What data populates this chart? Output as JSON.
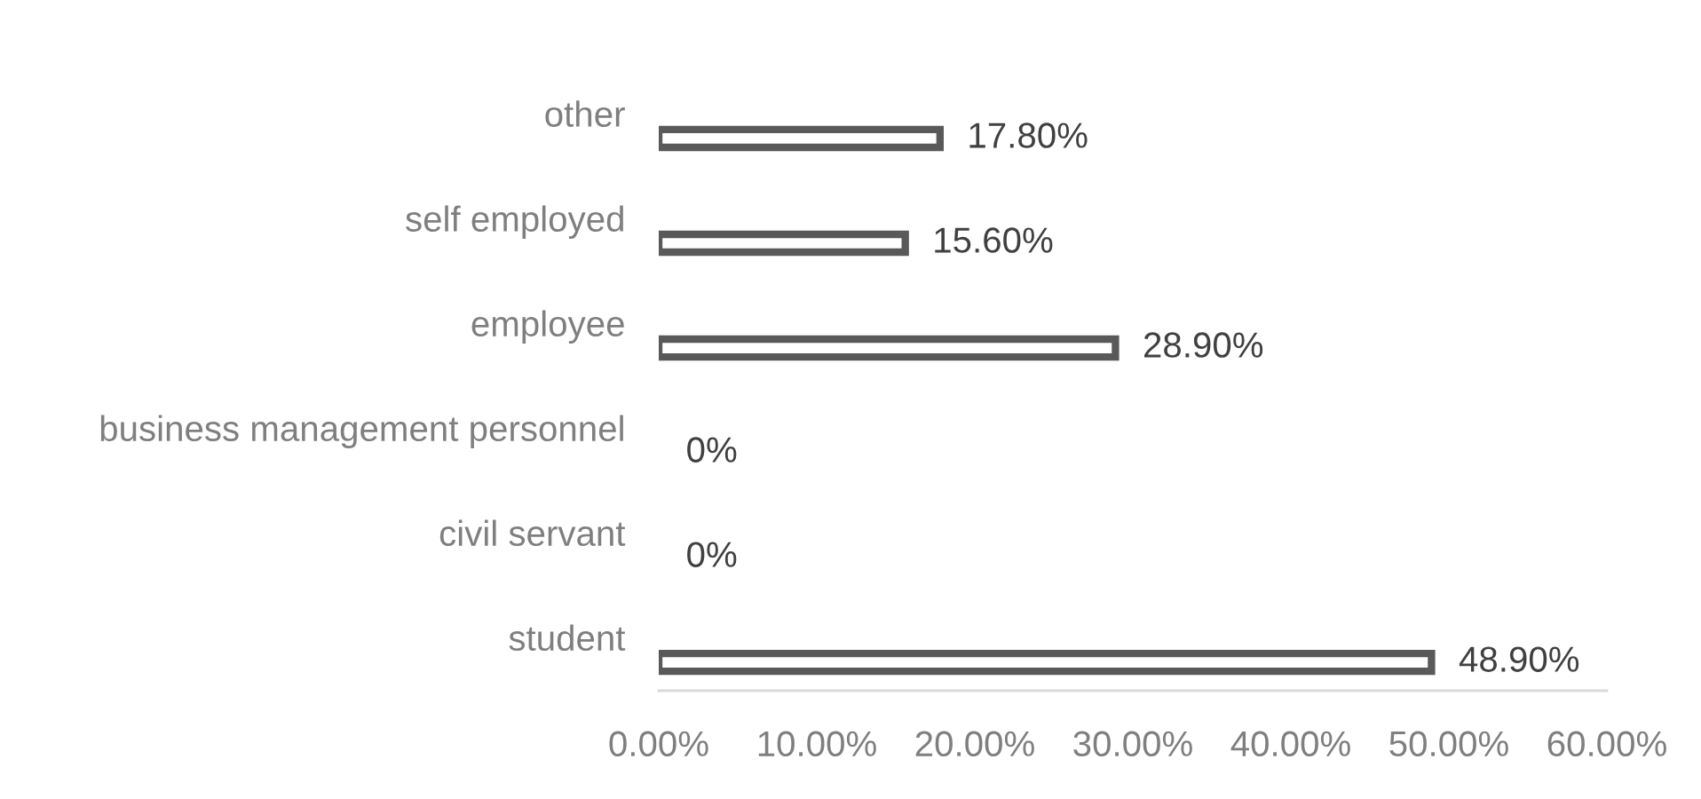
{
  "chart_data": {
    "type": "bar",
    "orientation": "horizontal",
    "categories": [
      "other",
      "self employed",
      "employee",
      "business management personnel",
      "civil servant",
      "student"
    ],
    "values": [
      17.8,
      15.6,
      28.9,
      0,
      0,
      48.9
    ],
    "value_labels": [
      "17.80%",
      "15.60%",
      "28.90%",
      "0%",
      "0%",
      "48.90%"
    ],
    "color": "#595959",
    "xlim": [
      0,
      60
    ],
    "xticks": [
      {
        "value": 0,
        "label": "0.00%"
      },
      {
        "value": 10,
        "label": "10.00%"
      },
      {
        "value": 20,
        "label": "20.00%"
      },
      {
        "value": 30,
        "label": "30.00%"
      },
      {
        "value": 40,
        "label": "40.00%"
      },
      {
        "value": 50,
        "label": "50.00%"
      },
      {
        "value": 60,
        "label": "60.00%"
      }
    ]
  }
}
